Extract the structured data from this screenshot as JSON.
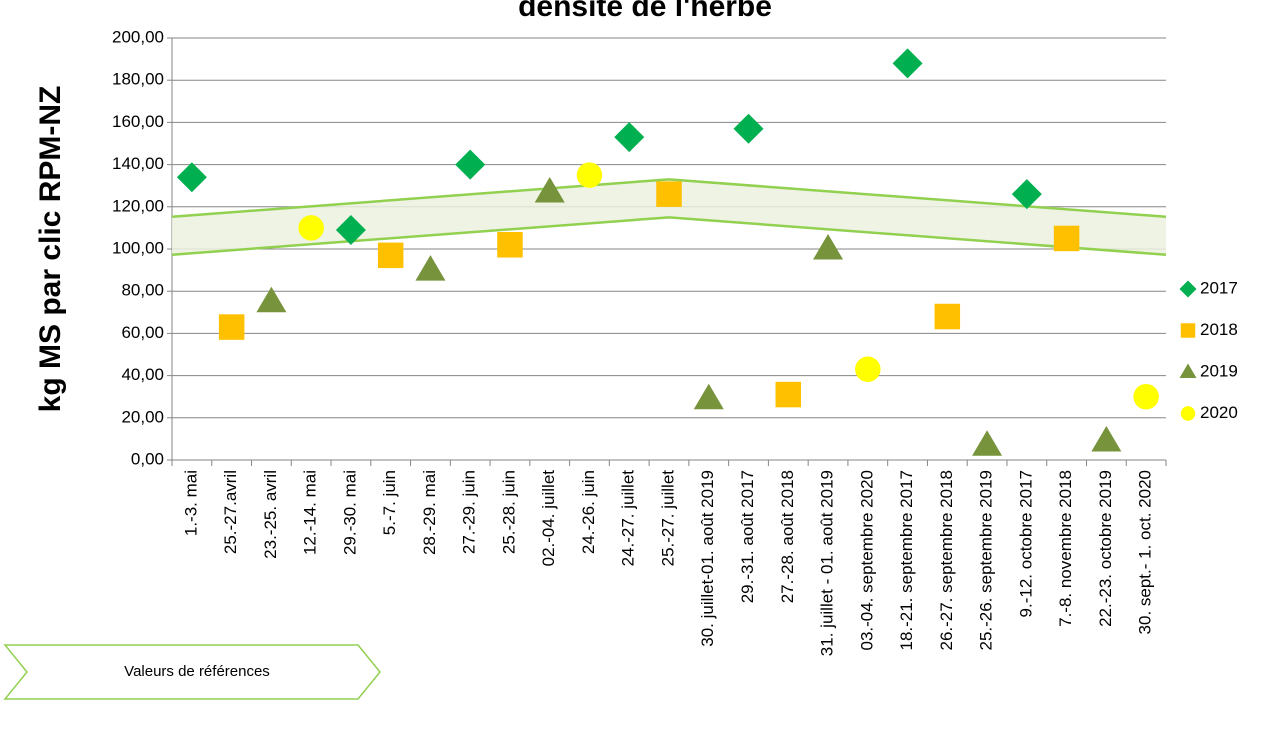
{
  "chart_data": {
    "type": "scatter",
    "title": "densité de l'herbe",
    "y_label": "kg MS par clic RPM-NZ",
    "categories": [
      "1.-3. mai",
      "25.-27.avril",
      "23.-25. avril",
      "12.-14. mai",
      "29.-30. mai",
      "5.-7. juin",
      "28.-29. mai",
      "27.-29. juin",
      "25.-28. juin",
      "02.-04. juillet",
      "24.-26. juin",
      "24.-27. juillet",
      "25.-27. juillet",
      "30. juillet-01. août 2019",
      "29.-31. août 2017",
      "27.-28. août 2018",
      "31. juillet - 01. août 2019",
      "03.-04. septembre 2020",
      "18.-21. septembre 2017",
      "26.-27. septembre 2018",
      "25.-26. septembre 2019",
      "9.-12. octobre 2017",
      "7.-8. novembre 2018",
      "22.-23. octobre 2019",
      "30. sept.- 1. oct. 2020"
    ],
    "series": [
      {
        "name": "2017",
        "color": "#00b050",
        "marker": "diamond",
        "values": [
          134,
          null,
          null,
          null,
          109,
          null,
          null,
          140,
          null,
          null,
          null,
          153,
          null,
          null,
          157,
          null,
          null,
          null,
          188,
          null,
          null,
          126,
          null,
          null,
          null
        ]
      },
      {
        "name": "2018",
        "color": "#ffc000",
        "marker": "square",
        "values": [
          null,
          63,
          null,
          null,
          null,
          97,
          null,
          null,
          102,
          null,
          null,
          null,
          126,
          null,
          null,
          31,
          null,
          null,
          null,
          68,
          null,
          null,
          105,
          null,
          null
        ]
      },
      {
        "name": "2019",
        "color": "#77933c",
        "marker": "triangle",
        "values": [
          null,
          null,
          75,
          null,
          null,
          null,
          90,
          null,
          null,
          127,
          null,
          null,
          null,
          29,
          null,
          null,
          100,
          null,
          null,
          null,
          7,
          null,
          null,
          9,
          null
        ]
      },
      {
        "name": "2020",
        "color": "#ffff00",
        "marker": "circle",
        "values": [
          null,
          null,
          null,
          110,
          null,
          null,
          null,
          null,
          null,
          null,
          135,
          null,
          null,
          null,
          null,
          null,
          null,
          43,
          null,
          null,
          null,
          null,
          null,
          null,
          30
        ]
      }
    ],
    "reference_band": {
      "name": "Valeurs de références",
      "color": "#92d050",
      "upper": [
        116,
        null,
        null,
        null,
        null,
        null,
        null,
        null,
        null,
        null,
        null,
        null,
        133,
        null,
        null,
        null,
        null,
        null,
        null,
        null,
        null,
        null,
        null,
        null,
        116
      ],
      "lower": [
        98,
        null,
        null,
        null,
        null,
        null,
        null,
        null,
        null,
        null,
        null,
        null,
        115,
        null,
        null,
        null,
        null,
        null,
        null,
        null,
        null,
        null,
        null,
        null,
        98
      ]
    },
    "ylim": [
      0,
      200
    ],
    "yticks": [
      {
        "value": 0,
        "label": "0,00"
      },
      {
        "value": 20,
        "label": "20,00"
      },
      {
        "value": 40,
        "label": "40,00"
      },
      {
        "value": 60,
        "label": "60,00"
      },
      {
        "value": 80,
        "label": "80,00"
      },
      {
        "value": 100,
        "label": "100,00"
      },
      {
        "value": 120,
        "label": "120,00"
      },
      {
        "value": 140,
        "label": "140,00"
      },
      {
        "value": 160,
        "label": "160,00"
      },
      {
        "value": 180,
        "label": "180,00"
      },
      {
        "value": 200,
        "label": "200,00"
      }
    ],
    "grid": true,
    "legend": "right"
  }
}
